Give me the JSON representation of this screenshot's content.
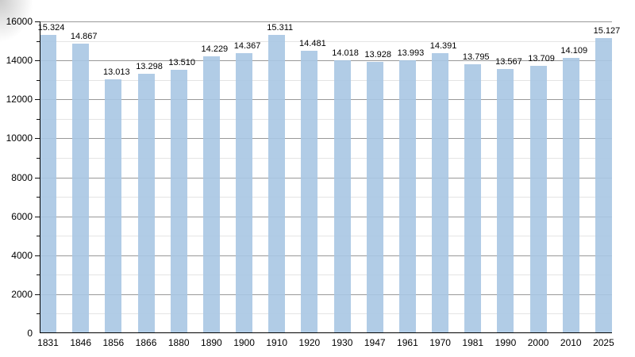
{
  "chart_data": {
    "type": "bar",
    "title": "",
    "xlabel": "",
    "ylabel": "",
    "categories": [
      "1831",
      "1846",
      "1856",
      "1866",
      "1880",
      "1890",
      "1900",
      "1910",
      "1920",
      "1930",
      "1947",
      "1961",
      "1970",
      "1981",
      "1990",
      "2000",
      "2010",
      "2025"
    ],
    "values": [
      15324,
      14867,
      13013,
      13298,
      13510,
      14229,
      14367,
      15311,
      14481,
      14018,
      13928,
      13993,
      14391,
      13795,
      13567,
      13709,
      14109,
      15127
    ],
    "value_labels": [
      "15.324",
      "14.867",
      "13.013",
      "13.298",
      "13.510",
      "14.229",
      "14.367",
      "15.311",
      "14.481",
      "14.018",
      "13.928",
      "13.993",
      "14.391",
      "13.795",
      "13.567",
      "13.709",
      "14.109",
      "15.127"
    ],
    "ylim": [
      0,
      16000
    ],
    "ytick_major_step": 2000,
    "ytick_minor_step": 1000,
    "ytick_labels": [
      "0",
      "2000",
      "4000",
      "6000",
      "8000",
      "10000",
      "12000",
      "14000",
      "16000"
    ],
    "grid": "on",
    "legend": "none",
    "colors": {
      "bar": "#a9c6e3",
      "major_grid": "#999999",
      "minor_grid": "#e4e4e4",
      "axis": "#000000",
      "text": "#000000"
    }
  }
}
